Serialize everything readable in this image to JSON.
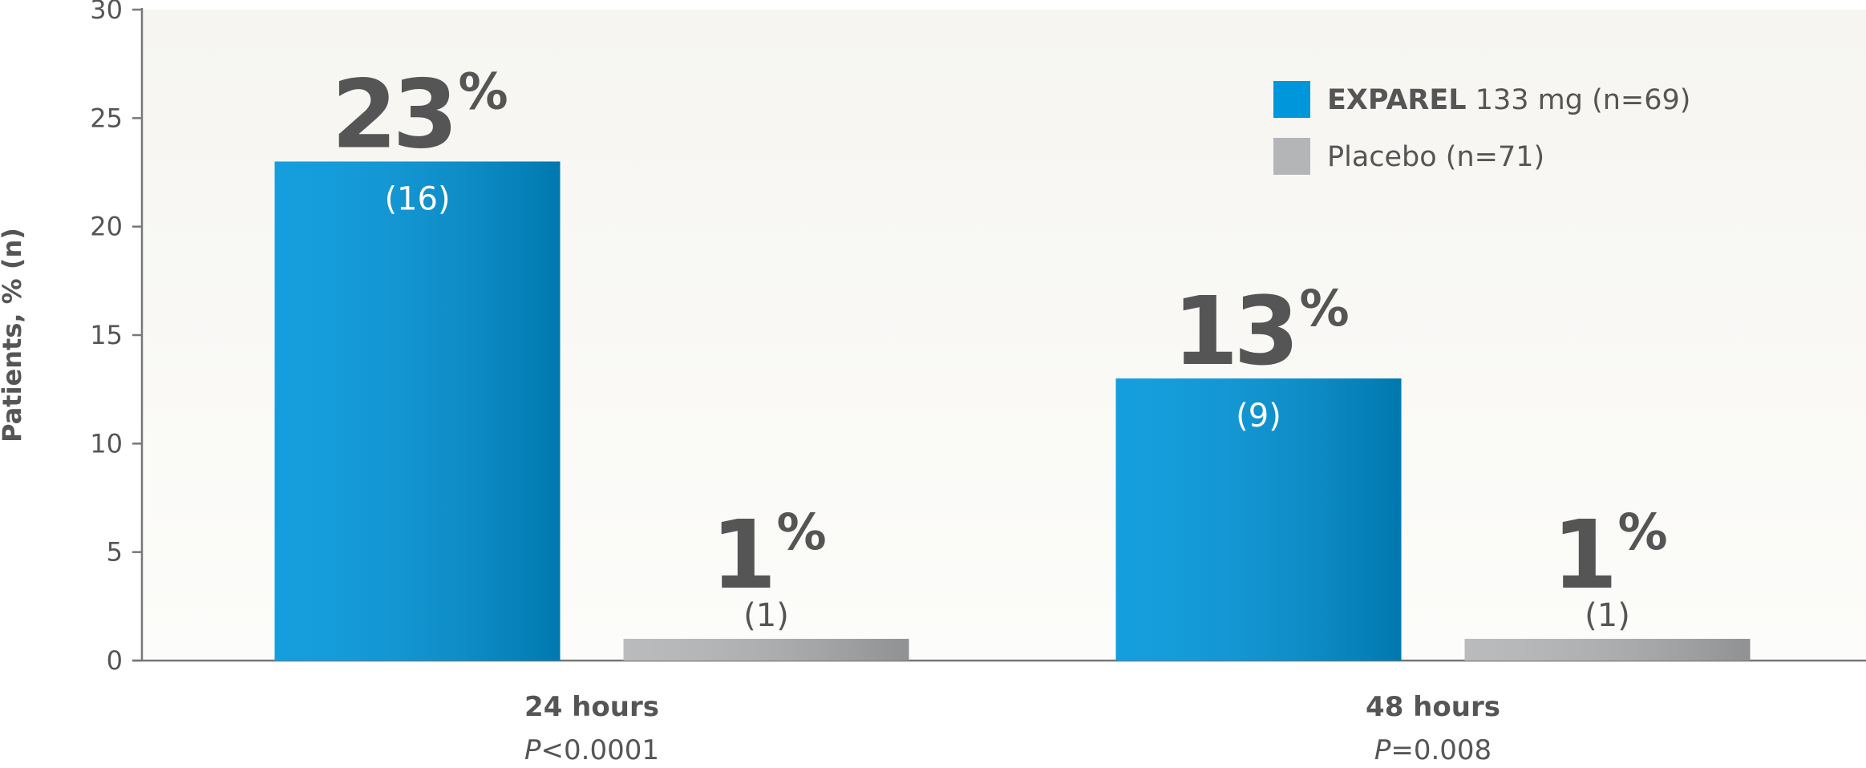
{
  "chart_data": {
    "type": "bar",
    "y_label": "Patients, % (n)",
    "categories": [
      "24 hours",
      "48 hours"
    ],
    "p_values": [
      "P<0.0001",
      "P=0.008"
    ],
    "series": [
      {
        "name": "EXPAREL 133 mg (n=69)",
        "color": "#0096db",
        "values": [
          23,
          13
        ],
        "value_labels": [
          "23%",
          "13%"
        ],
        "n_labels": [
          "(16)",
          "(9)"
        ]
      },
      {
        "name": "Placebo (n=71)",
        "color": "#b4b5b7",
        "values": [
          1,
          1
        ],
        "value_labels": [
          "1%",
          "1%"
        ],
        "n_labels": [
          "(1)",
          "(1)"
        ]
      }
    ],
    "ylim": [
      0,
      30
    ],
    "yticks": [
      0,
      5,
      10,
      15,
      20,
      25,
      30
    ],
    "grid": false,
    "legend": "upper right"
  }
}
